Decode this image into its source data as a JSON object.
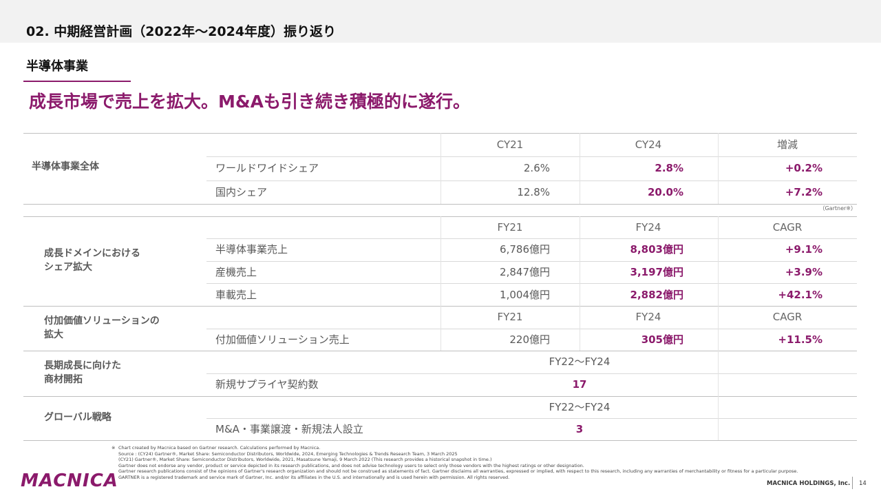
{
  "header": {
    "title": "02. 中期経営計画（2022年～2024年度）振り返り"
  },
  "section": {
    "label": "半導体事業"
  },
  "headline": "成長市場で売上を拡大。M&Aも引き続き積極的に遂行。",
  "table1": {
    "group": "半導体事業全体",
    "columns": [
      "CY21",
      "CY24",
      "増減"
    ],
    "rows": [
      {
        "label": "ワールドワイドシェア",
        "v1": "2.6%",
        "v2": "2.8%",
        "v3": "+0.2%"
      },
      {
        "label": "国内シェア",
        "v1": "12.8%",
        "v2": "20.0%",
        "v3": "+7.2%"
      }
    ],
    "source": "（Gartner※）"
  },
  "table2": {
    "group_line1": "成長ドメインにおける",
    "group_line2": "シェア拡大",
    "columns": [
      "FY21",
      "FY24",
      "CAGR"
    ],
    "rows": [
      {
        "label": "半導体事業売上",
        "v1": "6,786億円",
        "v2": "8,803億円",
        "v3": "+9.1%"
      },
      {
        "label": "産機売上",
        "v1": "2,847億円",
        "v2": "3,197億円",
        "v3": "+3.9%"
      },
      {
        "label": "車載売上",
        "v1": "1,004億円",
        "v2": "2,882億円",
        "v3": "+42.1%"
      }
    ]
  },
  "table3": {
    "group_line1": "付加価値ソリューションの",
    "group_line2": "拡大",
    "columns": [
      "FY21",
      "FY24",
      "CAGR"
    ],
    "rows": [
      {
        "label": "付加価値ソリューション売上",
        "v1": "220億円",
        "v2": "305億円",
        "v3": "+11.5%"
      }
    ]
  },
  "table4": {
    "group_line1": "長期成長に向けた",
    "group_line2": "商材開拓",
    "column": "FY22～FY24",
    "row": {
      "label": "新規サプライヤ契約数",
      "value": "17"
    }
  },
  "table5": {
    "group": "グローバル戦略",
    "column": "FY22～FY24",
    "row": {
      "label": "M&A・事業譲渡・新規法人設立",
      "value": "3"
    }
  },
  "footnote": {
    "marker": "※",
    "lines": [
      "Chart created by Macnica based on Gartner research. Calculations performed by Macnica.",
      "Source :   (CY24) Gartner®, Market Share: Semiconductor Distributors, Worldwide, 2024, Emerging Technologies & Trends Research Team, 3 March 2025",
      "               (CY21) Gartner®, Market Share: Semiconductor Distributors, Worldwide, 2021, Masatsune Yamaji, 9 March 2022 (This research provides a historical snapshot in time.)",
      "Gartner does not endorse any vendor, product or service depicted in its research publications, and does not advise technology users to select only those vendors with the highest ratings or other designation.",
      "Gartner research publications consist of the opinions of Gartner's research organization and should not be construed as statements of fact.   Gartner disclaims all warranties, expressed or implied, with respect to this research, including any warranties of merchantability or fitness for a particular purpose.",
      "GARTNER is a registered trademark and service mark of Gartner, Inc. and/or its affiliates in the U.S. and internationally and is used herein with permission. All rights reserved."
    ]
  },
  "footer": {
    "logo": "MACNICA",
    "company": "MACNICA HOLDINGS, Inc.",
    "page": "14"
  },
  "colors": {
    "accent": "#8b1a6b",
    "header_bg": "#f2f2f2"
  }
}
